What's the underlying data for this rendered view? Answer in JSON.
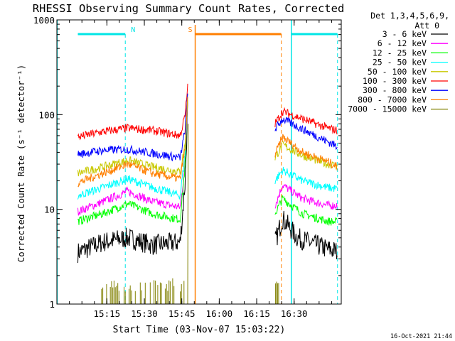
{
  "chart_data": {
    "type": "line",
    "title": "RHESSI Observing Summary Count Rates, Corrected",
    "xlabel": "Start Time (03-Nov-07 15:03:22)",
    "ylabel": "Corrected Count Rate (s⁻¹ detector⁻¹)",
    "yscale": "log",
    "ylim": [
      1,
      1000
    ],
    "xlim_minutes": [
      0,
      49
    ],
    "x_start": "15:03:22",
    "x_ticks": [
      "15:15",
      "15:30",
      "15:45",
      "16:00",
      "16:15",
      "16:30"
    ],
    "y_ticks": [
      "1",
      "10",
      "100",
      "1000"
    ],
    "legend_header": [
      "Det 1,3,4,5,6,9,",
      "Att 0"
    ],
    "legend_position": "right",
    "footer_date": "16-Oct-2021 21:44",
    "flags": [
      {
        "label": "N",
        "color": "#00e6e6",
        "start_min": 0,
        "end_min": 19,
        "dash_at_min": 19
      },
      {
        "label": "S",
        "color": "#ff7f00",
        "start_min": 47,
        "end_min": 81.5,
        "dash_at_min": 81.5
      },
      {
        "label": "",
        "color": "#00e6e6",
        "start_min": 85.5,
        "end_min": 104,
        "dash_at_min": 104
      }
    ],
    "series": [
      {
        "name": "3 - 6 keV",
        "color": "#000000",
        "pre": [
          [
            0,
            3.5
          ],
          [
            10,
            4.5
          ],
          [
            20,
            5.0
          ],
          [
            30,
            4.2
          ],
          [
            41,
            4.5
          ],
          [
            43,
            20
          ],
          [
            44,
            120
          ]
        ],
        "post": [
          [
            79,
            4.5
          ],
          [
            82,
            8
          ],
          [
            88,
            5
          ],
          [
            100,
            3.8
          ],
          [
            104,
            3.6
          ]
        ]
      },
      {
        "name": "6 - 12 keV",
        "color": "#ff00ff",
        "pre": [
          [
            0,
            9.5
          ],
          [
            10,
            12
          ],
          [
            20,
            15.5
          ],
          [
            30,
            12
          ],
          [
            41,
            10.5
          ],
          [
            43,
            30
          ],
          [
            44,
            150
          ]
        ],
        "post": [
          [
            79,
            11
          ],
          [
            82,
            18
          ],
          [
            90,
            13
          ],
          [
            100,
            11
          ],
          [
            104,
            11
          ]
        ]
      },
      {
        "name": "12 - 25 keV",
        "color": "#00ff00",
        "pre": [
          [
            0,
            7.5
          ],
          [
            10,
            9
          ],
          [
            20,
            11.5
          ],
          [
            30,
            9
          ],
          [
            41,
            7.8
          ],
          [
            43,
            30
          ],
          [
            44,
            150
          ]
        ],
        "post": [
          [
            79,
            9
          ],
          [
            82,
            13
          ],
          [
            90,
            9
          ],
          [
            100,
            7.5
          ],
          [
            104,
            7.3
          ]
        ]
      },
      {
        "name": "25 - 50 keV",
        "color": "#00ffff",
        "pre": [
          [
            0,
            14
          ],
          [
            10,
            17
          ],
          [
            20,
            21
          ],
          [
            30,
            17
          ],
          [
            41,
            14
          ],
          [
            43,
            40
          ],
          [
            44,
            160
          ]
        ],
        "post": [
          [
            79,
            20
          ],
          [
            82,
            26
          ],
          [
            90,
            20
          ],
          [
            100,
            17
          ],
          [
            104,
            16.5
          ]
        ]
      },
      {
        "name": "50 - 100 keV",
        "color": "#c8c800",
        "pre": [
          [
            0,
            24
          ],
          [
            10,
            28
          ],
          [
            20,
            33
          ],
          [
            30,
            28
          ],
          [
            41,
            25
          ],
          [
            43,
            50
          ],
          [
            44,
            160
          ]
        ],
        "post": [
          [
            79,
            35
          ],
          [
            82,
            48
          ],
          [
            90,
            37
          ],
          [
            100,
            30
          ],
          [
            104,
            29
          ]
        ]
      },
      {
        "name": "100 - 300 keV",
        "color": "#ff0000",
        "pre": [
          [
            0,
            58
          ],
          [
            10,
            66
          ],
          [
            20,
            72
          ],
          [
            30,
            68
          ],
          [
            41,
            60
          ],
          [
            43,
            100
          ],
          [
            44,
            200
          ]
        ],
        "post": [
          [
            79,
            80
          ],
          [
            82,
            108
          ],
          [
            90,
            90
          ],
          [
            100,
            72
          ],
          [
            104,
            68
          ]
        ]
      },
      {
        "name": "300 - 800 keV",
        "color": "#0000ff",
        "pre": [
          [
            0,
            38
          ],
          [
            10,
            42
          ],
          [
            20,
            43
          ],
          [
            30,
            39
          ],
          [
            41,
            35
          ],
          [
            43,
            70
          ],
          [
            44,
            170
          ]
        ],
        "post": [
          [
            79,
            70
          ],
          [
            82,
            90
          ],
          [
            90,
            70
          ],
          [
            100,
            52
          ],
          [
            104,
            46
          ]
        ]
      },
      {
        "name": "800 - 7000 keV",
        "color": "#ff7f00",
        "pre": [
          [
            0,
            19
          ],
          [
            10,
            24
          ],
          [
            20,
            30
          ],
          [
            30,
            24
          ],
          [
            41,
            21
          ],
          [
            43,
            45
          ],
          [
            44,
            160
          ]
        ],
        "post": [
          [
            79,
            38
          ],
          [
            82,
            58
          ],
          [
            90,
            40
          ],
          [
            100,
            32
          ],
          [
            104,
            28
          ]
        ]
      },
      {
        "name": "7000 - 15000 keV",
        "color": "#808000",
        "pre": [],
        "post": []
      }
    ]
  }
}
